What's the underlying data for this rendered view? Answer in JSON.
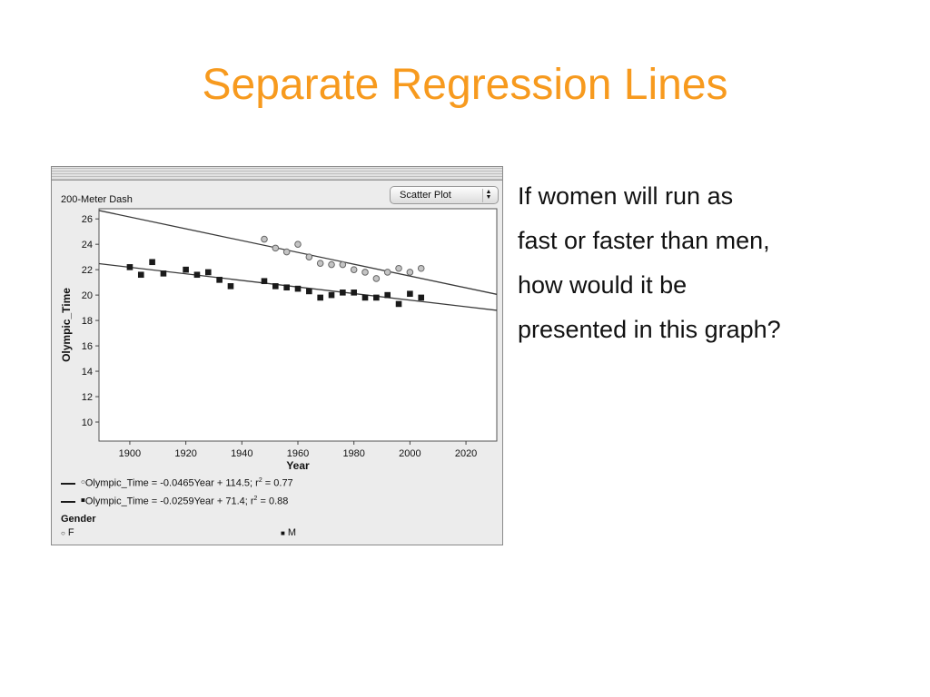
{
  "slide": {
    "title": "Separate Regression Lines",
    "body_lines": [
      "If women will run as",
      "fast or faster than men,",
      "how would it be",
      "presented in this graph?"
    ]
  },
  "window": {
    "plot_name": "200-Meter Dash",
    "plot_type": "Scatter Plot"
  },
  "legend": {
    "lines": [
      {
        "marker": "open-circle-marker",
        "equation": "Olympic_Time = -0.0465Year + 114.5; r",
        "power": "2",
        "tail": " = 0.77"
      },
      {
        "marker": "filled-square-marker",
        "equation": "Olympic_Time = -0.0259Year + 71.4; r",
        "power": "2",
        "tail": " = 0.88"
      }
    ],
    "gender_title": "Gender",
    "keys": [
      {
        "symbol": "○",
        "label": "F"
      },
      {
        "symbol": "■",
        "label": "M"
      }
    ]
  },
  "colors": {
    "title": "#F79A1E",
    "women_marker_fill": "#c4c4c4",
    "men_marker_fill": "#1a1a1a",
    "regression_line": "#3a3a3a"
  },
  "chart_data": {
    "type": "scatter",
    "title": "",
    "xlabel": "Year",
    "ylabel": "Olympic_Time",
    "xlim": [
      1889,
      2031
    ],
    "ylim": [
      8.5,
      26.8
    ],
    "xticks": [
      1900,
      1920,
      1940,
      1960,
      1980,
      2000,
      2020
    ],
    "yticks": [
      10,
      12,
      14,
      16,
      18,
      20,
      22,
      24,
      26
    ],
    "grid": false,
    "legend_position": "bottom",
    "series": [
      {
        "name": "F",
        "marker": "open-circle",
        "points": [
          [
            1948,
            24.4
          ],
          [
            1952,
            23.7
          ],
          [
            1956,
            23.4
          ],
          [
            1960,
            24.0
          ],
          [
            1964,
            23.0
          ],
          [
            1968,
            22.5
          ],
          [
            1972,
            22.4
          ],
          [
            1976,
            22.4
          ],
          [
            1980,
            22.0
          ],
          [
            1984,
            21.8
          ],
          [
            1988,
            21.3
          ],
          [
            1992,
            21.8
          ],
          [
            1996,
            22.1
          ],
          [
            2000,
            21.8
          ],
          [
            2004,
            22.1
          ]
        ],
        "regression": {
          "slope": -0.0465,
          "intercept": 114.5,
          "r2": 0.77
        }
      },
      {
        "name": "M",
        "marker": "filled-square",
        "points": [
          [
            1900,
            22.2
          ],
          [
            1904,
            21.6
          ],
          [
            1908,
            22.6
          ],
          [
            1912,
            21.7
          ],
          [
            1920,
            22.0
          ],
          [
            1924,
            21.6
          ],
          [
            1928,
            21.8
          ],
          [
            1932,
            21.2
          ],
          [
            1936,
            20.7
          ],
          [
            1948,
            21.1
          ],
          [
            1952,
            20.7
          ],
          [
            1956,
            20.6
          ],
          [
            1960,
            20.5
          ],
          [
            1964,
            20.3
          ],
          [
            1968,
            19.8
          ],
          [
            1972,
            20.0
          ],
          [
            1976,
            20.2
          ],
          [
            1980,
            20.2
          ],
          [
            1984,
            19.8
          ],
          [
            1988,
            19.8
          ],
          [
            1992,
            20.0
          ],
          [
            1996,
            19.3
          ],
          [
            2000,
            20.1
          ],
          [
            2004,
            19.8
          ]
        ],
        "regression": {
          "slope": -0.0259,
          "intercept": 71.4,
          "r2": 0.88
        }
      }
    ]
  }
}
